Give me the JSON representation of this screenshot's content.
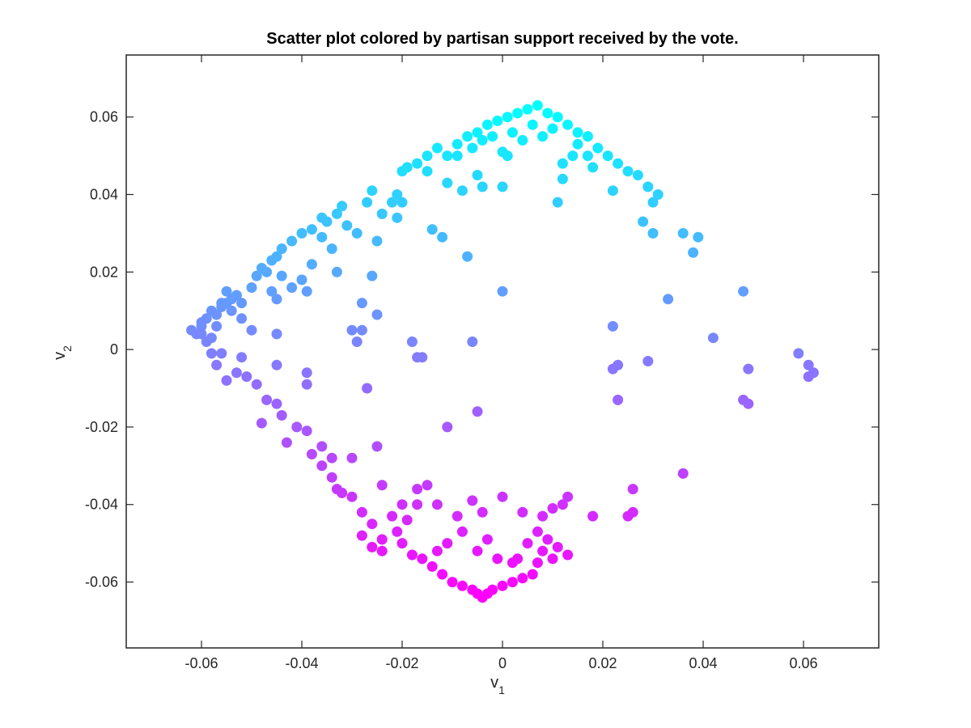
{
  "chart_data": {
    "type": "scatter",
    "title": "Scatter plot colored by partisan support received by the vote.",
    "xlabel": "v",
    "xlabel_sub": "1",
    "ylabel": "v",
    "ylabel_sub": "2",
    "xlim": [
      -0.075,
      0.075
    ],
    "ylim": [
      -0.077,
      0.076
    ],
    "xticks": [
      -0.06,
      -0.04,
      -0.02,
      0,
      0.02,
      0.04,
      0.06
    ],
    "xtick_labels": [
      "-0.06",
      "-0.04",
      "-0.02",
      "0",
      "0.02",
      "0.04",
      "0.06"
    ],
    "yticks": [
      -0.06,
      -0.04,
      -0.02,
      0,
      0.02,
      0.04,
      0.06
    ],
    "ytick_labels": [
      "-0.06",
      "-0.04",
      "-0.02",
      "0",
      "0.02",
      "0.04",
      "0.06"
    ],
    "grid": false,
    "colormap": "cool",
    "color_low": "#ff00ff",
    "color_high": "#00ffff",
    "points": [
      [
        -0.062,
        0.005
      ],
      [
        -0.061,
        0.004
      ],
      [
        -0.06,
        0.006
      ],
      [
        -0.059,
        0.008
      ],
      [
        -0.058,
        0.01
      ],
      [
        -0.057,
        0.009
      ],
      [
        -0.056,
        0.011
      ],
      [
        -0.055,
        0.012
      ],
      [
        -0.054,
        0.013
      ],
      [
        -0.053,
        0.014
      ],
      [
        -0.052,
        0.012
      ],
      [
        -0.055,
        0.015
      ],
      [
        -0.05,
        0.016
      ],
      [
        -0.049,
        0.019
      ],
      [
        -0.048,
        0.021
      ],
      [
        -0.047,
        0.02
      ],
      [
        -0.046,
        0.023
      ],
      [
        -0.045,
        0.024
      ],
      [
        -0.044,
        0.026
      ],
      [
        -0.042,
        0.028
      ],
      [
        -0.04,
        0.03
      ],
      [
        -0.038,
        0.031
      ],
      [
        -0.036,
        0.034
      ],
      [
        -0.035,
        0.033
      ],
      [
        -0.033,
        0.035
      ],
      [
        -0.032,
        0.037
      ],
      [
        -0.031,
        0.032
      ],
      [
        -0.029,
        0.03
      ],
      [
        -0.027,
        0.038
      ],
      [
        -0.026,
        0.041
      ],
      [
        -0.024,
        0.035
      ],
      [
        -0.022,
        0.038
      ],
      [
        -0.021,
        0.04
      ],
      [
        -0.02,
        0.046
      ],
      [
        -0.019,
        0.047
      ],
      [
        -0.017,
        0.048
      ],
      [
        -0.015,
        0.05
      ],
      [
        -0.013,
        0.052
      ],
      [
        -0.011,
        0.05
      ],
      [
        -0.009,
        0.053
      ],
      [
        -0.007,
        0.055
      ],
      [
        -0.005,
        0.056
      ],
      [
        -0.003,
        0.058
      ],
      [
        -0.001,
        0.059
      ],
      [
        0.001,
        0.06
      ],
      [
        0.003,
        0.061
      ],
      [
        0.005,
        0.062
      ],
      [
        0.007,
        0.063
      ],
      [
        0.009,
        0.061
      ],
      [
        0.011,
        0.06
      ],
      [
        0.013,
        0.058
      ],
      [
        0.015,
        0.056
      ],
      [
        0.017,
        0.055
      ],
      [
        0.019,
        0.052
      ],
      [
        0.021,
        0.05
      ],
      [
        0.023,
        0.048
      ],
      [
        0.025,
        0.046
      ],
      [
        0.027,
        0.045
      ],
      [
        0.029,
        0.042
      ],
      [
        0.031,
        0.04
      ],
      [
        0.03,
        0.038
      ],
      [
        0.03,
        0.03
      ],
      [
        0.028,
        0.033
      ],
      [
        0.036,
        0.03
      ],
      [
        0.038,
        0.025
      ],
      [
        0.039,
        0.029
      ],
      [
        0.033,
        0.013
      ],
      [
        0.042,
        0.003
      ],
      [
        0.048,
        0.015
      ],
      [
        0.059,
        -0.001
      ],
      [
        0.061,
        -0.004
      ],
      [
        0.062,
        -0.006
      ],
      [
        0.061,
        -0.007
      ],
      [
        0.049,
        -0.005
      ],
      [
        0.048,
        -0.013
      ],
      [
        0.049,
        -0.014
      ],
      [
        0.036,
        -0.032
      ],
      [
        0.029,
        -0.003
      ],
      [
        0.023,
        -0.004
      ],
      [
        0.022,
        -0.005
      ],
      [
        0.022,
        0.006
      ],
      [
        0.023,
        -0.013
      ],
      [
        0.026,
        -0.036
      ],
      [
        0.026,
        -0.042
      ],
      [
        0.025,
        -0.043
      ],
      [
        0.018,
        -0.043
      ],
      [
        0.012,
        -0.04
      ],
      [
        0.013,
        -0.038
      ],
      [
        0.01,
        -0.041
      ],
      [
        0.008,
        -0.043
      ],
      [
        0.004,
        -0.042
      ],
      [
        0.0,
        -0.038
      ],
      [
        -0.004,
        -0.042
      ],
      [
        -0.006,
        -0.039
      ],
      [
        -0.009,
        -0.043
      ],
      [
        -0.013,
        -0.04
      ],
      [
        -0.015,
        -0.035
      ],
      [
        -0.017,
        -0.04
      ],
      [
        -0.019,
        -0.044
      ],
      [
        -0.021,
        -0.047
      ],
      [
        -0.024,
        -0.049
      ],
      [
        -0.026,
        -0.045
      ],
      [
        -0.028,
        -0.042
      ],
      [
        -0.03,
        -0.038
      ],
      [
        -0.032,
        -0.037
      ],
      [
        -0.034,
        -0.033
      ],
      [
        -0.036,
        -0.03
      ],
      [
        -0.038,
        -0.027
      ],
      [
        -0.039,
        -0.021
      ],
      [
        -0.041,
        -0.02
      ],
      [
        -0.043,
        -0.024
      ],
      [
        -0.044,
        -0.017
      ],
      [
        -0.045,
        -0.014
      ],
      [
        -0.047,
        -0.013
      ],
      [
        -0.049,
        -0.009
      ],
      [
        -0.051,
        -0.007
      ],
      [
        -0.053,
        -0.006
      ],
      [
        -0.055,
        -0.008
      ],
      [
        -0.057,
        -0.004
      ],
      [
        -0.058,
        -0.001
      ],
      [
        -0.059,
        0.002
      ],
      [
        -0.056,
        -0.001
      ],
      [
        -0.052,
        -0.002
      ],
      [
        -0.048,
        -0.019
      ],
      [
        -0.045,
        -0.004
      ],
      [
        -0.039,
        -0.006
      ],
      [
        -0.039,
        -0.009
      ],
      [
        -0.034,
        -0.028
      ],
      [
        -0.03,
        -0.028
      ],
      [
        -0.027,
        -0.01
      ],
      [
        -0.025,
        -0.025
      ],
      [
        -0.024,
        -0.035
      ],
      [
        -0.028,
        -0.048
      ],
      [
        -0.026,
        -0.051
      ],
      [
        -0.024,
        -0.052
      ],
      [
        -0.02,
        -0.05
      ],
      [
        -0.018,
        -0.053
      ],
      [
        -0.016,
        -0.054
      ],
      [
        -0.014,
        -0.056
      ],
      [
        -0.012,
        -0.058
      ],
      [
        -0.01,
        -0.06
      ],
      [
        -0.008,
        -0.061
      ],
      [
        -0.006,
        -0.062
      ],
      [
        -0.005,
        -0.063
      ],
      [
        -0.004,
        -0.064
      ],
      [
        -0.003,
        -0.063
      ],
      [
        -0.002,
        -0.062
      ],
      [
        0.0,
        -0.061
      ],
      [
        0.002,
        -0.06
      ],
      [
        0.004,
        -0.059
      ],
      [
        0.006,
        -0.058
      ],
      [
        0.007,
        -0.055
      ],
      [
        0.008,
        -0.052
      ],
      [
        0.009,
        -0.049
      ],
      [
        0.011,
        -0.051
      ],
      [
        0.013,
        -0.053
      ],
      [
        0.005,
        -0.05
      ],
      [
        0.003,
        -0.054
      ],
      [
        0.002,
        -0.055
      ],
      [
        -0.001,
        -0.054
      ],
      [
        -0.003,
        -0.049
      ],
      [
        -0.005,
        -0.052
      ],
      [
        -0.008,
        -0.047
      ],
      [
        -0.011,
        -0.05
      ],
      [
        -0.013,
        -0.052
      ],
      [
        -0.011,
        -0.02
      ],
      [
        -0.005,
        -0.016
      ],
      [
        -0.006,
        0.002
      ],
      [
        -0.017,
        -0.002
      ],
      [
        -0.016,
        -0.002
      ],
      [
        -0.018,
        0.002
      ],
      [
        -0.025,
        0.009
      ],
      [
        -0.028,
        0.012
      ],
      [
        -0.028,
        0.005
      ],
      [
        -0.029,
        0.002
      ],
      [
        -0.03,
        0.005
      ],
      [
        -0.026,
        0.019
      ],
      [
        -0.025,
        0.028
      ],
      [
        -0.014,
        0.031
      ],
      [
        -0.012,
        0.029
      ],
      [
        -0.007,
        0.024
      ],
      [
        0.0,
        0.015
      ],
      [
        -0.004,
        0.042
      ],
      [
        -0.005,
        0.045
      ],
      [
        0.0,
        0.042
      ],
      [
        0.011,
        0.038
      ],
      [
        0.012,
        0.044
      ],
      [
        0.018,
        0.047
      ],
      [
        0.017,
        0.05
      ],
      [
        0.015,
        0.053
      ],
      [
        0.022,
        0.041
      ],
      [
        -0.008,
        0.041
      ],
      [
        -0.011,
        0.043
      ],
      [
        -0.015,
        0.046
      ],
      [
        -0.02,
        0.038
      ],
      [
        -0.021,
        0.034
      ],
      [
        -0.033,
        0.02
      ],
      [
        -0.036,
        0.029
      ],
      [
        -0.038,
        0.022
      ],
      [
        -0.04,
        0.018
      ],
      [
        -0.042,
        0.016
      ],
      [
        -0.044,
        0.019
      ],
      [
        -0.045,
        0.013
      ],
      [
        -0.046,
        0.015
      ],
      [
        -0.039,
        0.015
      ],
      [
        -0.034,
        0.026
      ],
      [
        -0.05,
        0.005
      ],
      [
        -0.052,
        0.008
      ],
      [
        -0.054,
        0.01
      ],
      [
        -0.057,
        0.006
      ],
      [
        -0.058,
        0.003
      ],
      [
        -0.06,
        0.004
      ],
      [
        -0.06,
        0.007
      ],
      [
        -0.045,
        0.004
      ],
      [
        -0.056,
        0.012
      ],
      [
        0.004,
        0.054
      ],
      [
        0.006,
        0.058
      ],
      [
        0.008,
        0.055
      ],
      [
        0.01,
        0.057
      ],
      [
        0.002,
        0.056
      ],
      [
        -0.002,
        0.055
      ],
      [
        -0.004,
        0.054
      ],
      [
        0.0,
        0.051
      ],
      [
        0.001,
        0.05
      ],
      [
        0.012,
        0.048
      ],
      [
        0.014,
        0.05
      ],
      [
        -0.009,
        0.05
      ],
      [
        -0.006,
        0.052
      ],
      [
        0.007,
        -0.047
      ],
      [
        0.01,
        -0.054
      ],
      [
        -0.02,
        -0.04
      ],
      [
        -0.017,
        -0.036
      ],
      [
        -0.022,
        -0.043
      ],
      [
        -0.033,
        -0.036
      ],
      [
        -0.036,
        -0.025
      ]
    ]
  }
}
